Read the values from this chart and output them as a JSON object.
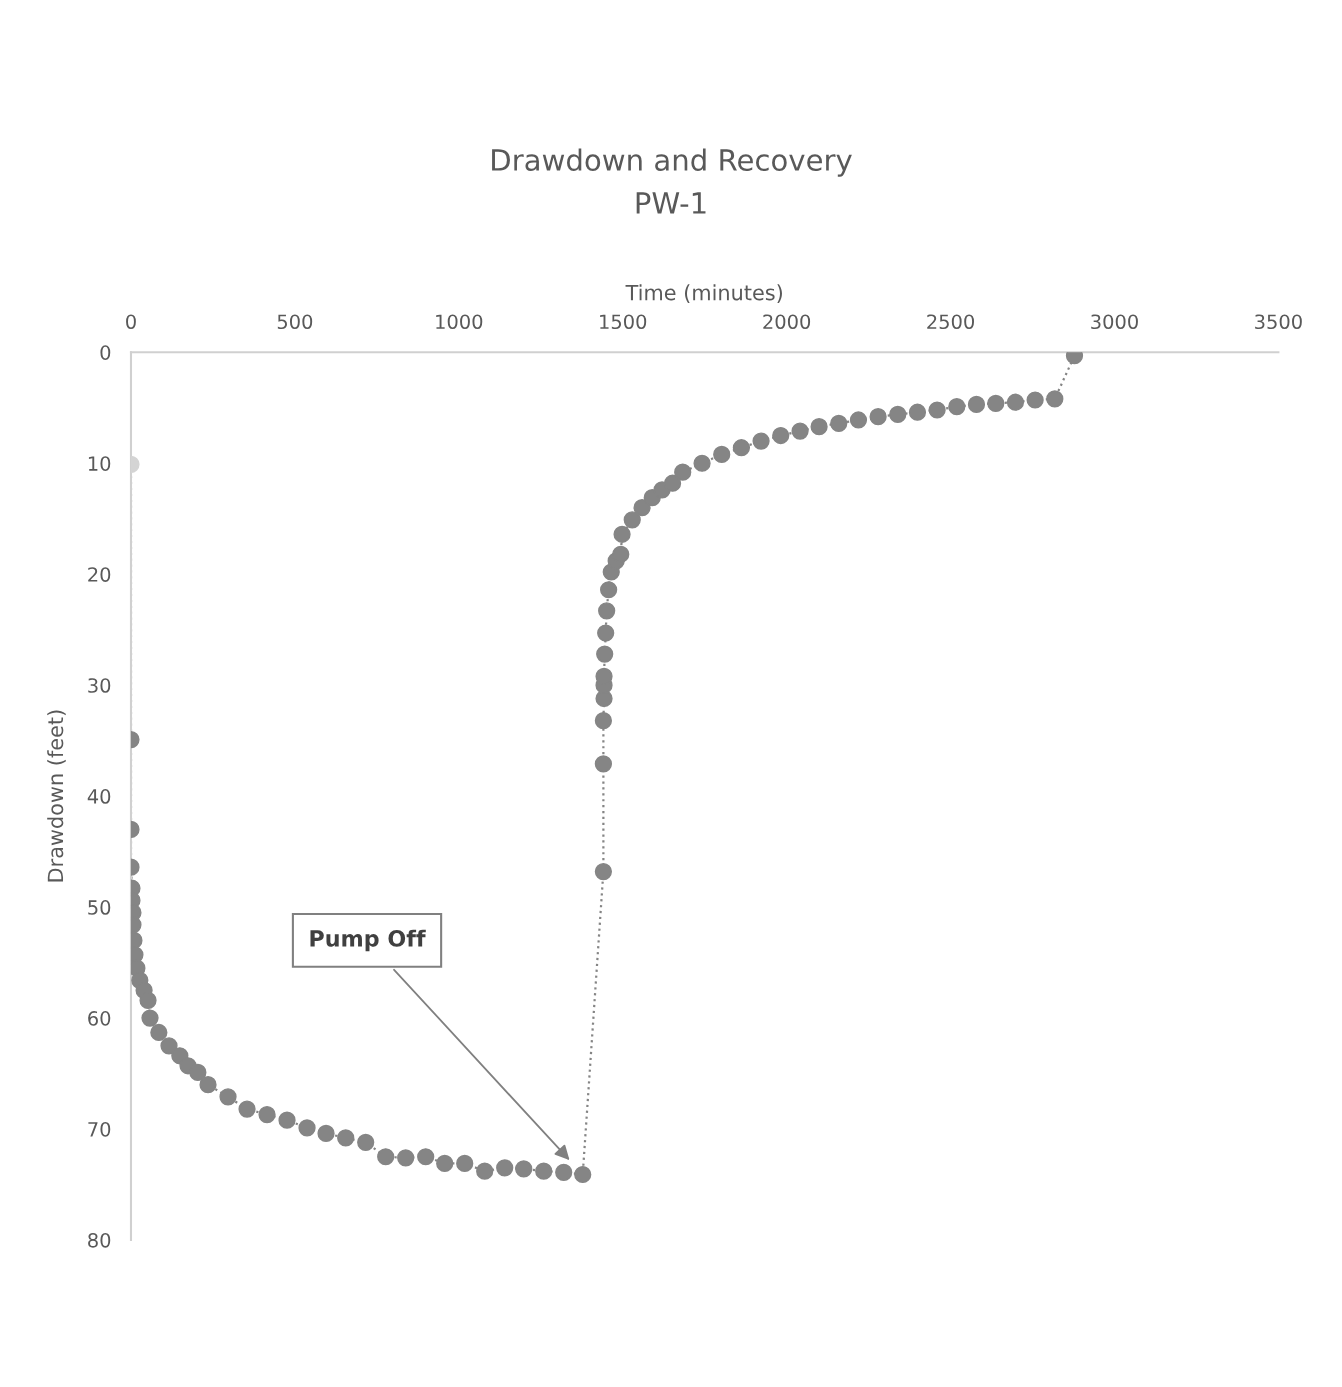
{
  "chart_data": {
    "type": "line",
    "title": "Drawdown and Recovery",
    "subtitle": "PW-1",
    "xlabel": "Time (minutes)",
    "ylabel": "Drawdown (feet)",
    "xlim": [
      0,
      3500
    ],
    "xticks": [
      0,
      500,
      1000,
      1500,
      2000,
      2500,
      3000,
      3500
    ],
    "ylim": [
      80,
      0
    ],
    "yticks": [
      0,
      10,
      20,
      30,
      40,
      50,
      60,
      70,
      80
    ],
    "grid": false,
    "legend": false,
    "marker": "circle",
    "line_style": "dotted",
    "series": [
      {
        "color": "#858585",
        "colors": [
          "#d4d4d4",
          "#858585",
          "#858585",
          "#858585",
          "#858585",
          "#858585",
          "#858585",
          "#858585",
          "#858585",
          "#858585",
          "#858585",
          "#858585",
          "#858585",
          "#858585",
          "#858585",
          "#858585",
          "#858585",
          "#858585",
          "#858585",
          "#858585",
          "#858585",
          "#858585",
          "#858585",
          "#858585",
          "#858585",
          "#858585",
          "#858585",
          "#858585",
          "#858585",
          "#858585",
          "#858585",
          "#858585",
          "#858585",
          "#858585",
          "#858585",
          "#858585",
          "#858585",
          "#858585",
          "#858585",
          "#858585",
          "#858585",
          "#858585",
          "#858585",
          "#858585",
          "#858585",
          "#858585",
          "#858585",
          "#858585",
          "#858585",
          "#858585",
          "#858585",
          "#858585",
          "#858585",
          "#858585",
          "#858585",
          "#858585",
          "#858585",
          "#858585",
          "#858585",
          "#858585",
          "#858585",
          "#858585",
          "#858585",
          "#858585",
          "#858585",
          "#858585",
          "#858585",
          "#858585",
          "#858585",
          "#858585",
          "#858585",
          "#858585",
          "#858585",
          "#858585",
          "#858585",
          "#858585",
          "#858585",
          "#858585",
          "#858585",
          "#858585"
        ],
        "x": [
          0,
          0,
          0,
          0,
          3,
          3,
          6,
          6,
          9,
          12,
          18,
          27,
          40,
          52,
          58,
          85,
          116,
          149,
          174,
          204,
          235,
          296,
          354,
          415,
          476,
          537,
          595,
          655,
          716,
          777,
          838,
          899,
          957,
          1018,
          1079,
          1140,
          1198,
          1259,
          1320,
          1378,
          1441,
          1441,
          1441,
          1443,
          1443,
          1443,
          1445,
          1448,
          1451,
          1457,
          1465,
          1480,
          1494,
          1498,
          1529,
          1559,
          1590,
          1620,
          1652,
          1683,
          1742,
          1802,
          1862,
          1922,
          1982,
          2041,
          2099,
          2159,
          2219,
          2279,
          2339,
          2399,
          2459,
          2519,
          2579,
          2638,
          2698,
          2758,
          2818,
          2878
        ],
        "values": [
          10.1,
          34.9,
          43.0,
          46.4,
          48.3,
          49.4,
          50.5,
          51.6,
          53.0,
          54.3,
          55.5,
          56.6,
          57.5,
          58.4,
          60.0,
          61.3,
          62.5,
          63.4,
          64.3,
          64.9,
          66.0,
          67.1,
          68.2,
          68.7,
          69.2,
          69.9,
          70.4,
          70.8,
          71.2,
          72.5,
          72.6,
          72.5,
          73.1,
          73.1,
          73.8,
          73.5,
          73.6,
          73.8,
          73.9,
          74.1,
          46.8,
          37.1,
          33.2,
          31.2,
          30.0,
          29.2,
          27.2,
          25.3,
          23.3,
          21.4,
          19.8,
          18.8,
          18.2,
          16.4,
          15.1,
          14.0,
          13.1,
          12.4,
          11.8,
          10.8,
          10.0,
          9.2,
          8.6,
          8.0,
          7.5,
          7.1,
          6.7,
          6.4,
          6.1,
          5.8,
          5.6,
          5.4,
          5.2,
          4.9,
          4.7,
          4.6,
          4.5,
          4.3,
          4.2,
          0.3
        ]
      }
    ],
    "annotations": [
      "Pump Off"
    ]
  }
}
